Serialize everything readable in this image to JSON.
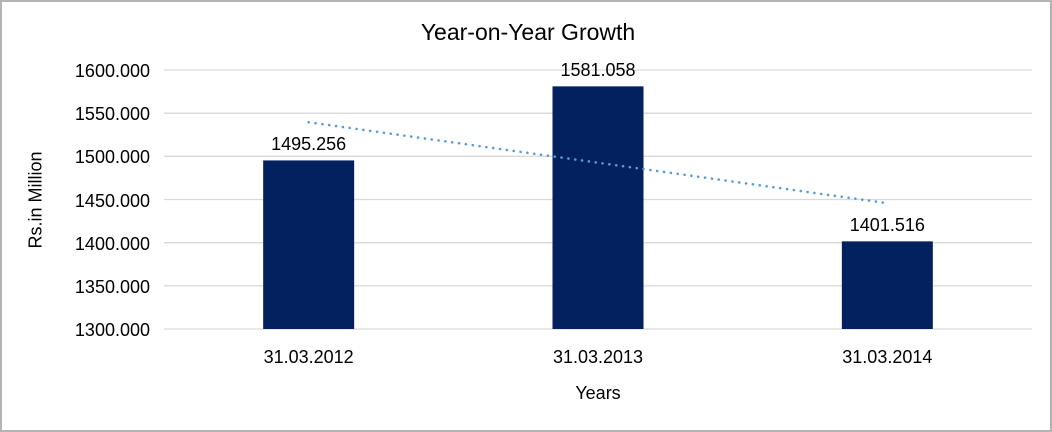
{
  "chart_data": {
    "type": "bar",
    "title": "Year-on-Year Growth",
    "xlabel": "Years",
    "ylabel": "Rs.in Million",
    "categories": [
      "31.03.2012",
      "31.03.2013",
      "31.03.2014"
    ],
    "values": [
      1495.256,
      1581.058,
      1401.516
    ],
    "data_labels": [
      "1495.256",
      "1581.058",
      "1401.516"
    ],
    "ylim": [
      1300,
      1600
    ],
    "ytick_step": 50,
    "ytick_labels": [
      "1300.000",
      "1350.000",
      "1400.000",
      "1450.000",
      "1500.000",
      "1550.000",
      "1600.000"
    ],
    "grid": true,
    "legend": "none",
    "bar_color": "#03215F",
    "gridline_color": "#d9d9d9",
    "trendline": {
      "type": "linear",
      "style": "dotted",
      "color": "#5B9BD5"
    }
  }
}
